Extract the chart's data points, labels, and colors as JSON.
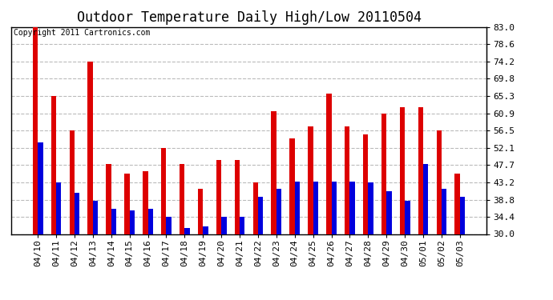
{
  "title": "Outdoor Temperature Daily High/Low 20110504",
  "copyright_text": "Copyright 2011 Cartronics.com",
  "categories": [
    "04/10",
    "04/11",
    "04/12",
    "04/13",
    "04/14",
    "04/15",
    "04/16",
    "04/17",
    "04/18",
    "04/19",
    "04/20",
    "04/21",
    "04/22",
    "04/23",
    "04/24",
    "04/25",
    "04/26",
    "04/27",
    "04/28",
    "04/29",
    "04/30",
    "05/01",
    "05/02",
    "05/03"
  ],
  "highs": [
    83.0,
    65.3,
    56.5,
    74.2,
    48.0,
    45.5,
    46.0,
    52.1,
    48.0,
    41.5,
    49.0,
    49.0,
    43.2,
    61.5,
    54.5,
    57.5,
    66.0,
    57.5,
    55.5,
    60.9,
    62.5,
    62.5,
    56.5,
    45.5
  ],
  "lows": [
    53.5,
    43.2,
    40.5,
    38.5,
    36.5,
    36.0,
    36.5,
    34.5,
    31.5,
    32.0,
    34.5,
    34.5,
    39.5,
    41.5,
    43.5,
    43.5,
    43.5,
    43.5,
    43.2,
    41.0,
    38.5,
    48.0,
    41.5,
    39.5
  ],
  "high_color": "#dd0000",
  "low_color": "#0000dd",
  "bg_color": "#ffffff",
  "plot_bg_color": "#ffffff",
  "grid_color": "#bbbbbb",
  "ylim": [
    30.0,
    83.0
  ],
  "yticks": [
    30.0,
    34.4,
    38.8,
    43.2,
    47.7,
    52.1,
    56.5,
    60.9,
    65.3,
    69.8,
    74.2,
    78.6,
    83.0
  ],
  "bar_width": 0.28,
  "title_fontsize": 12,
  "tick_fontsize": 8,
  "copyright_fontsize": 7
}
